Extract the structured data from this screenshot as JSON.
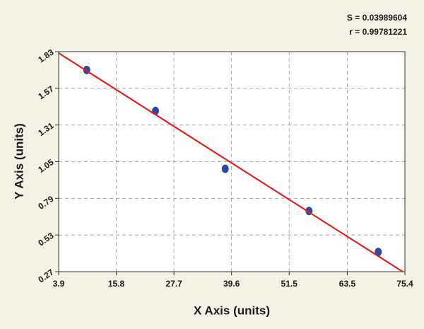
{
  "chart_data": {
    "type": "scatter",
    "x_label": "X Axis (units)",
    "y_label": "Y Axis (units)",
    "annotations": [
      "S = 0.03989604",
      "r = 0.99781221"
    ],
    "xlim": [
      3.9,
      75.4
    ],
    "ylim": [
      0.27,
      1.83
    ],
    "xticks": [
      3.9,
      15.8,
      27.7,
      39.6,
      51.5,
      63.5,
      75.4
    ],
    "yticks": [
      0.27,
      0.53,
      0.79,
      1.05,
      1.31,
      1.57,
      1.83
    ],
    "grid": true,
    "series": [
      {
        "mode": "markers",
        "color": "#2d47a6",
        "x": [
          9.7,
          23.9,
          38.3,
          55.6,
          69.9
        ],
        "values": [
          1.7,
          1.41,
          1.0,
          0.7,
          0.41
        ]
      },
      {
        "mode": "lines",
        "color": "#e3201b",
        "x": [
          3.9,
          75.4
        ],
        "values": [
          1.82,
          0.26
        ]
      }
    ]
  }
}
